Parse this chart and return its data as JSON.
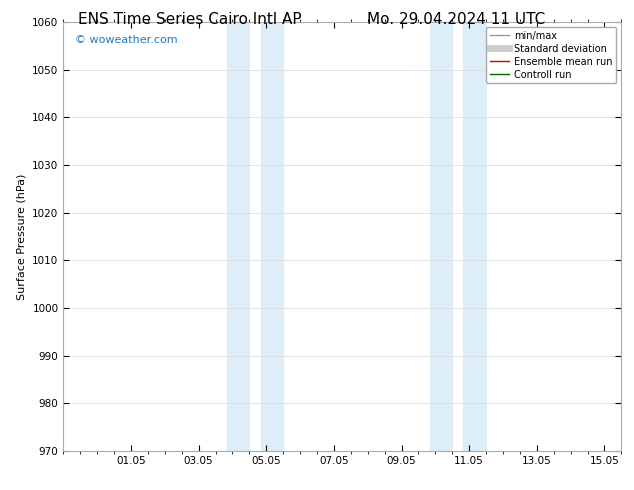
{
  "title_left": "ENS Time Series Cairo Intl AP",
  "title_right": "Mo. 29.04.2024 11 UTC",
  "ylabel": "Surface Pressure (hPa)",
  "ylim": [
    970,
    1060
  ],
  "yticks": [
    970,
    980,
    990,
    1000,
    1010,
    1020,
    1030,
    1040,
    1050,
    1060
  ],
  "xtick_labels": [
    "01.05",
    "03.05",
    "05.05",
    "07.05",
    "09.05",
    "11.05",
    "13.05",
    "15.05"
  ],
  "xtick_positions": [
    2,
    4,
    6,
    8,
    10,
    12,
    14,
    16
  ],
  "xlim": [
    0,
    16
  ],
  "shaded_regions": [
    {
      "x_start": 4.83,
      "x_end": 5.5
    },
    {
      "x_start": 5.83,
      "x_end": 6.5
    },
    {
      "x_start": 10.83,
      "x_end": 11.5
    },
    {
      "x_start": 11.83,
      "x_end": 12.5
    }
  ],
  "shaded_color": "#ddeef8",
  "watermark": "© woweather.com",
  "watermark_color": "#2277cc",
  "legend_entries": [
    {
      "label": "min/max",
      "color": "#999999",
      "lw": 1.0
    },
    {
      "label": "Standard deviation",
      "color": "#cccccc",
      "lw": 5
    },
    {
      "label": "Ensemble mean run",
      "color": "#cc0000",
      "lw": 1.0
    },
    {
      "label": "Controll run",
      "color": "#006600",
      "lw": 1.0
    }
  ],
  "bg_color": "#ffffff",
  "grid_color": "#dddddd",
  "title_fontsize": 11,
  "ylabel_fontsize": 8,
  "tick_fontsize": 7.5,
  "legend_fontsize": 7,
  "watermark_fontsize": 8
}
